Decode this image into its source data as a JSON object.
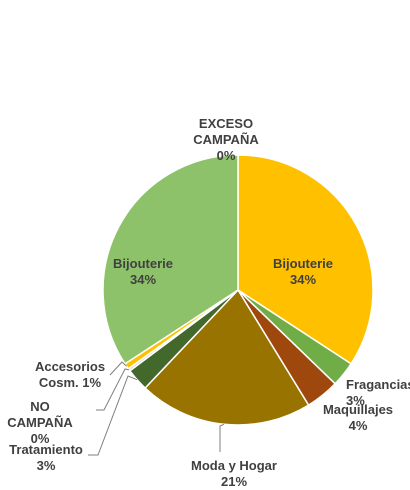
{
  "chart_data": {
    "type": "pie",
    "title": "",
    "start_angle_deg": 0,
    "direction": "clockwise",
    "slice_border_color": "#ffffff",
    "slices": [
      {
        "label": "EXCESO CAMPAÑA",
        "label_lines": [
          "EXCESO",
          "CAMPAÑA"
        ],
        "pct_text": "0%",
        "value": 0.0,
        "color": "#d9d9d9"
      },
      {
        "label": "Bijouterie",
        "label_lines": [
          "Bijouterie"
        ],
        "pct_text": "34%",
        "value": 34.0,
        "color": "#ffc000"
      },
      {
        "label": "Fragancias",
        "label_lines": [
          "Fragancias"
        ],
        "pct_text": "3%",
        "value": 3.0,
        "color": "#70ad47"
      },
      {
        "label": "Maquillajes",
        "label_lines": [
          "Maquillajes"
        ],
        "pct_text": "4%",
        "value": 4.0,
        "color": "#9e480e"
      },
      {
        "label": "Moda y Hogar",
        "label_lines": [
          "Moda y Hogar"
        ],
        "pct_text": "21%",
        "value": 20.7,
        "color": "#997300"
      },
      {
        "label": "Tratamiento",
        "label_lines": [
          "Tratamiento"
        ],
        "pct_text": "3%",
        "value": 2.7,
        "color": "#43682b"
      },
      {
        "label": "NO CAMPAÑA",
        "label_lines": [
          "NO",
          "CAMPAÑA"
        ],
        "pct_text": "0%",
        "value": 0.3,
        "color": "#d9d9d9"
      },
      {
        "label": "Accesorios Cosm.",
        "label_lines": [
          "Accesorios",
          "Cosm. 1%"
        ],
        "pct_text": "1%",
        "value": 0.7,
        "color": "#ffc000"
      },
      {
        "label": "Bijouterie",
        "label_lines": [
          "Bijouterie"
        ],
        "pct_text": "34%",
        "value": 34.0,
        "color": "#8dc26a"
      }
    ]
  }
}
